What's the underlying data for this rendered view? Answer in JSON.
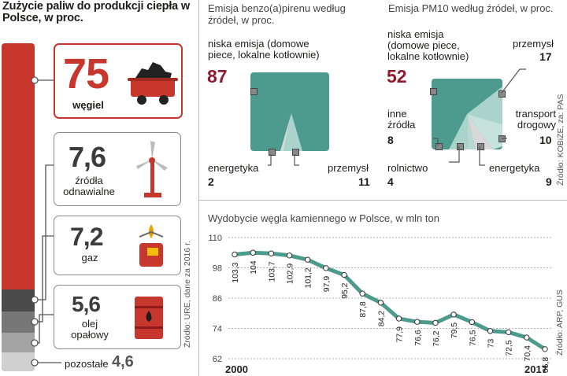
{
  "left": {
    "title": "Zużycie paliw do produkcji ciepła w Polsce, w proc.",
    "items": [
      {
        "value": "75",
        "label": "węgiel"
      },
      {
        "value": "7,6",
        "label": "źródła odnawialne"
      },
      {
        "value": "7,2",
        "label": "gaz"
      },
      {
        "value": "5,6",
        "label": "olej opałowy"
      },
      {
        "value": "4,6",
        "label": "pozostałe"
      }
    ],
    "source": "Źródło: URE, dane za 2016 r."
  },
  "bap": {
    "title": "Emisja benzo(a)pirenu według źródeł, w proc.",
    "main_label": "niska emisja (domowe piece, lokalne kotłownie)",
    "main_value": "87",
    "energetyka_label": "energetyka",
    "energetyka_value": "2",
    "przemysl_label": "przemysł",
    "przemysl_value": "11"
  },
  "pm10": {
    "title": "Emisja PM10 według źródeł, w proc.",
    "main_label": "niska emisja (domowe piece, lokalne kotłownie)",
    "main_value": "52",
    "przemysl_label": "przemysł",
    "przemysl_value": "17",
    "inne_label": "inne źródła",
    "inne_value": "8",
    "transport_label": "transport drogowy",
    "transport_value": "10",
    "rolnictwo_label": "rolnictwo",
    "rolnictwo_value": "4",
    "energetyka_label": "energetyka",
    "energetyka_value": "9",
    "source": "Źródło: KOBiZE, za: PAS"
  },
  "line": {
    "title": "Wydobycie węgla kamiennego w Polsce, w mln ton",
    "source": "Źródło: ARP, GUS"
  },
  "colors": {
    "red": "#c8372d",
    "teal": "#4d9a8f",
    "light_teal": "#a9d3cb",
    "gray_light": "#d8d8d8"
  },
  "chart_data": [
    {
      "type": "bar",
      "title": "Zużycie paliw do produkcji ciepła w Polsce, w proc.",
      "categories": [
        "węgiel",
        "źródła odnawialne",
        "gaz",
        "olej opałowy",
        "pozostałe"
      ],
      "values": [
        75,
        7.6,
        7.2,
        5.6,
        4.6
      ]
    },
    {
      "type": "area",
      "title": "Emisja benzo(a)pirenu według źródeł, w proc.",
      "categories": [
        "niska emisja (domowe piece, lokalne kotłownie)",
        "energetyka",
        "przemysł"
      ],
      "values": [
        87,
        2,
        11
      ]
    },
    {
      "type": "area",
      "title": "Emisja PM10 według źródeł, w proc.",
      "categories": [
        "niska emisja (domowe piece, lokalne kotłownie)",
        "przemysł",
        "transport drogowy",
        "energetyka",
        "rolnictwo",
        "inne źródła"
      ],
      "values": [
        52,
        17,
        10,
        9,
        4,
        8
      ]
    },
    {
      "type": "line",
      "title": "Wydobycie węgla kamiennego w Polsce, w mln ton",
      "x": [
        2000,
        2001,
        2002,
        2003,
        2004,
        2005,
        2006,
        2007,
        2008,
        2009,
        2010,
        2011,
        2012,
        2013,
        2014,
        2015,
        2016,
        2017
      ],
      "values": [
        "103,3",
        "104",
        "103,7",
        "102,9",
        "101,2",
        "97,9",
        "95,2",
        "87,8",
        "84,2",
        "77,9",
        "76,6",
        "76,2",
        "79,5",
        "76,5",
        "73",
        "72,5",
        "70,4",
        "65,8"
      ],
      "y": [
        103.3,
        104,
        103.7,
        102.9,
        101.2,
        97.9,
        95.2,
        87.8,
        84.2,
        77.9,
        76.6,
        76.2,
        79.5,
        76.5,
        73,
        72.5,
        70.4,
        65.8
      ],
      "x_tick_labels": [
        "2000",
        "2017"
      ],
      "y_ticks": [
        "110",
        "98",
        "86",
        "74",
        "62"
      ],
      "ylim": [
        62,
        110
      ],
      "color": "#4d9a8f"
    }
  ]
}
